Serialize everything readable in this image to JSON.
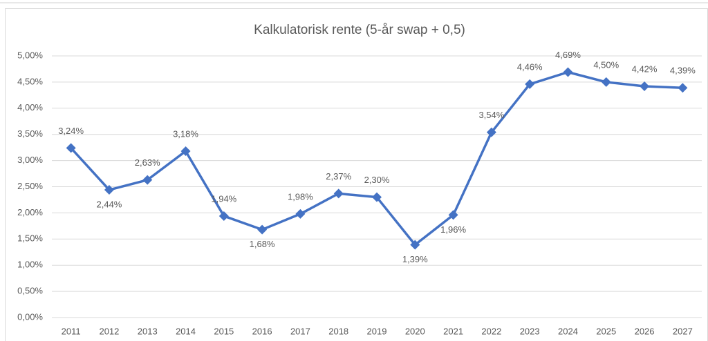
{
  "chart_data": {
    "type": "line",
    "title": "Kalkulatorisk rente (5-år swap + 0,5)",
    "categories": [
      "2011",
      "2012",
      "2013",
      "2014",
      "2015",
      "2016",
      "2017",
      "2018",
      "2019",
      "2020",
      "2021",
      "2022",
      "2023",
      "2024",
      "2025",
      "2026",
      "2027"
    ],
    "series": [
      {
        "name": "Kalkulatorisk rente",
        "color": "#4472c4",
        "values": [
          3.24,
          2.44,
          2.63,
          3.18,
          1.94,
          1.68,
          1.98,
          2.37,
          2.3,
          1.39,
          1.96,
          3.54,
          4.46,
          4.69,
          4.5,
          4.42,
          4.39
        ],
        "value_labels": [
          "3,24%",
          "2,44%",
          "2,63%",
          "3,18%",
          "1,94%",
          "1,68%",
          "1,98%",
          "2,37%",
          "2,30%",
          "1,39%",
          "1,96%",
          "3,54%",
          "4,46%",
          "4,69%",
          "4,50%",
          "4,42%",
          "4,39%"
        ]
      }
    ],
    "ylim": [
      0,
      5
    ],
    "yticks": [
      {
        "value": 0,
        "label": "0,00%"
      },
      {
        "value": 0.5,
        "label": "0,50%"
      },
      {
        "value": 1,
        "label": "1,00%"
      },
      {
        "value": 1.5,
        "label": "1,50%"
      },
      {
        "value": 2,
        "label": "2,00%"
      },
      {
        "value": 2.5,
        "label": "2,50%"
      },
      {
        "value": 3,
        "label": "3,00%"
      },
      {
        "value": 3.5,
        "label": "3,50%"
      },
      {
        "value": 4,
        "label": "4,00%"
      },
      {
        "value": 4.5,
        "label": "4,50%"
      },
      {
        "value": 5,
        "label": "5,00%"
      }
    ],
    "grid": true
  }
}
